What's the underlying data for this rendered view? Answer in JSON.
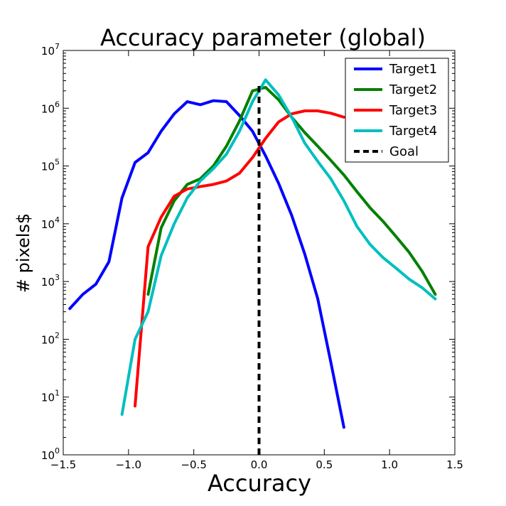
{
  "chart_data": {
    "type": "line",
    "title": "Accuracy parameter (global)",
    "xlabel": "Accuracy",
    "ylabel": "# pixels$",
    "yscale": "log",
    "xlim": [
      -1.5,
      1.5
    ],
    "ylim": [
      1,
      10000000
    ],
    "xticks": [
      "−1.5",
      "−1.0",
      "−0.5",
      "0.0",
      "0.5",
      "1.0",
      "1.5"
    ],
    "xtick_values": [
      -1.5,
      -1.0,
      -0.5,
      0.0,
      0.5,
      1.0,
      1.5
    ],
    "yticks": [
      {
        "base": "10",
        "exp": "0",
        "value": 1
      },
      {
        "base": "10",
        "exp": "1",
        "value": 10
      },
      {
        "base": "10",
        "exp": "2",
        "value": 100
      },
      {
        "base": "10",
        "exp": "3",
        "value": 1000
      },
      {
        "base": "10",
        "exp": "4",
        "value": 10000
      },
      {
        "base": "10",
        "exp": "5",
        "value": 100000
      },
      {
        "base": "10",
        "exp": "6",
        "value": 1000000
      },
      {
        "base": "10",
        "exp": "7",
        "value": 10000000
      }
    ],
    "grid": false,
    "legend_position": "top-right",
    "series": [
      {
        "name": "Target1",
        "color": "#0000ff",
        "x": [
          -1.45,
          -1.35,
          -1.25,
          -1.15,
          -1.05,
          -0.95,
          -0.85,
          -0.75,
          -0.65,
          -0.55,
          -0.45,
          -0.35,
          -0.25,
          -0.15,
          -0.05,
          0.05,
          0.15,
          0.25,
          0.35,
          0.45,
          0.55,
          0.65
        ],
        "y": [
          340,
          600,
          900,
          2200,
          28000,
          115000,
          170000,
          400000,
          800000,
          1300000,
          1150000,
          1350000,
          1300000,
          750000,
          400000,
          150000,
          50000,
          14000,
          3000,
          500,
          40,
          3
        ]
      },
      {
        "name": "Target2",
        "color": "#008000",
        "x": [
          -0.85,
          -0.75,
          -0.65,
          -0.55,
          -0.45,
          -0.35,
          -0.25,
          -0.15,
          -0.05,
          0.05,
          0.15,
          0.25,
          0.35,
          0.45,
          0.55,
          0.65,
          0.75,
          0.85,
          0.95,
          1.05,
          1.15,
          1.25,
          1.35
        ],
        "y": [
          600,
          8500,
          25000,
          48000,
          60000,
          100000,
          220000,
          600000,
          2000000,
          2300000,
          1400000,
          700000,
          380000,
          220000,
          125000,
          70000,
          36000,
          19000,
          11000,
          6000,
          3200,
          1500,
          600
        ]
      },
      {
        "name": "Target3",
        "color": "#ff0000",
        "x": [
          -0.95,
          -0.85,
          -0.75,
          -0.65,
          -0.55,
          -0.45,
          -0.35,
          -0.25,
          -0.15,
          -0.05,
          0.05,
          0.15,
          0.25,
          0.35,
          0.45,
          0.55,
          0.65
        ],
        "y": [
          7,
          4000,
          13000,
          30000,
          40000,
          44000,
          48000,
          55000,
          75000,
          140000,
          300000,
          580000,
          800000,
          900000,
          900000,
          820000,
          700000
        ]
      },
      {
        "name": "Target4",
        "color": "#00bfbf",
        "x": [
          -1.05,
          -0.95,
          -0.85,
          -0.75,
          -0.65,
          -0.55,
          -0.45,
          -0.35,
          -0.25,
          -0.15,
          -0.05,
          0.05,
          0.15,
          0.25,
          0.35,
          0.45,
          0.55,
          0.65,
          0.75,
          0.85,
          0.95,
          1.05,
          1.15,
          1.25,
          1.35
        ],
        "y": [
          5,
          100,
          300,
          2800,
          10000,
          28000,
          55000,
          90000,
          160000,
          400000,
          1300000,
          3100000,
          1700000,
          700000,
          250000,
          120000,
          60000,
          25000,
          9000,
          4400,
          2600,
          1700,
          1100,
          780,
          500
        ]
      },
      {
        "name": "Goal",
        "color": "#000000",
        "dashed": true,
        "x": [
          0.0,
          0.0
        ],
        "y": [
          1,
          2800000
        ]
      }
    ]
  }
}
